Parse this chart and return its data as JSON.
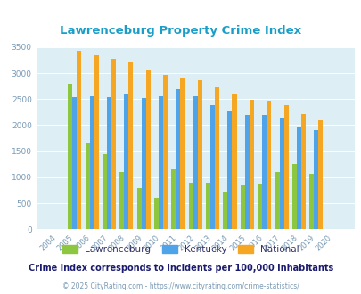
{
  "title": "Lawrenceburg Property Crime Index",
  "years": [
    "2004",
    "2005",
    "2006",
    "2007",
    "2008",
    "2009",
    "2010",
    "2011",
    "2012",
    "2013",
    "2014",
    "2015",
    "2016",
    "2017",
    "2018",
    "2019",
    "2020"
  ],
  "lawrenceburg": [
    0,
    2800,
    1650,
    1450,
    1100,
    800,
    600,
    1150,
    900,
    900,
    730,
    850,
    880,
    1100,
    1250,
    1060,
    0
  ],
  "kentucky": [
    0,
    2540,
    2560,
    2540,
    2600,
    2530,
    2560,
    2700,
    2560,
    2380,
    2260,
    2190,
    2190,
    2140,
    1970,
    1900,
    0
  ],
  "national": [
    0,
    3420,
    3340,
    3270,
    3210,
    3050,
    2960,
    2920,
    2870,
    2730,
    2600,
    2490,
    2470,
    2380,
    2210,
    2100,
    0
  ],
  "color_lawrenceburg": "#8dc63f",
  "color_kentucky": "#4fa3e8",
  "color_national": "#f5a623",
  "bg_color": "#ddeef5",
  "ylim": [
    0,
    3500
  ],
  "yticks": [
    0,
    500,
    1000,
    1500,
    2000,
    2500,
    3000,
    3500
  ],
  "subtitle": "Crime Index corresponds to incidents per 100,000 inhabitants",
  "footer": "© 2025 CityRating.com - https://www.cityrating.com/crime-statistics/",
  "title_color": "#1a9ec8",
  "subtitle_color": "#1a1a6e",
  "footer_color": "#7a9ab5",
  "tick_color": "#7a9ab5",
  "legend_label_color": "#333366"
}
